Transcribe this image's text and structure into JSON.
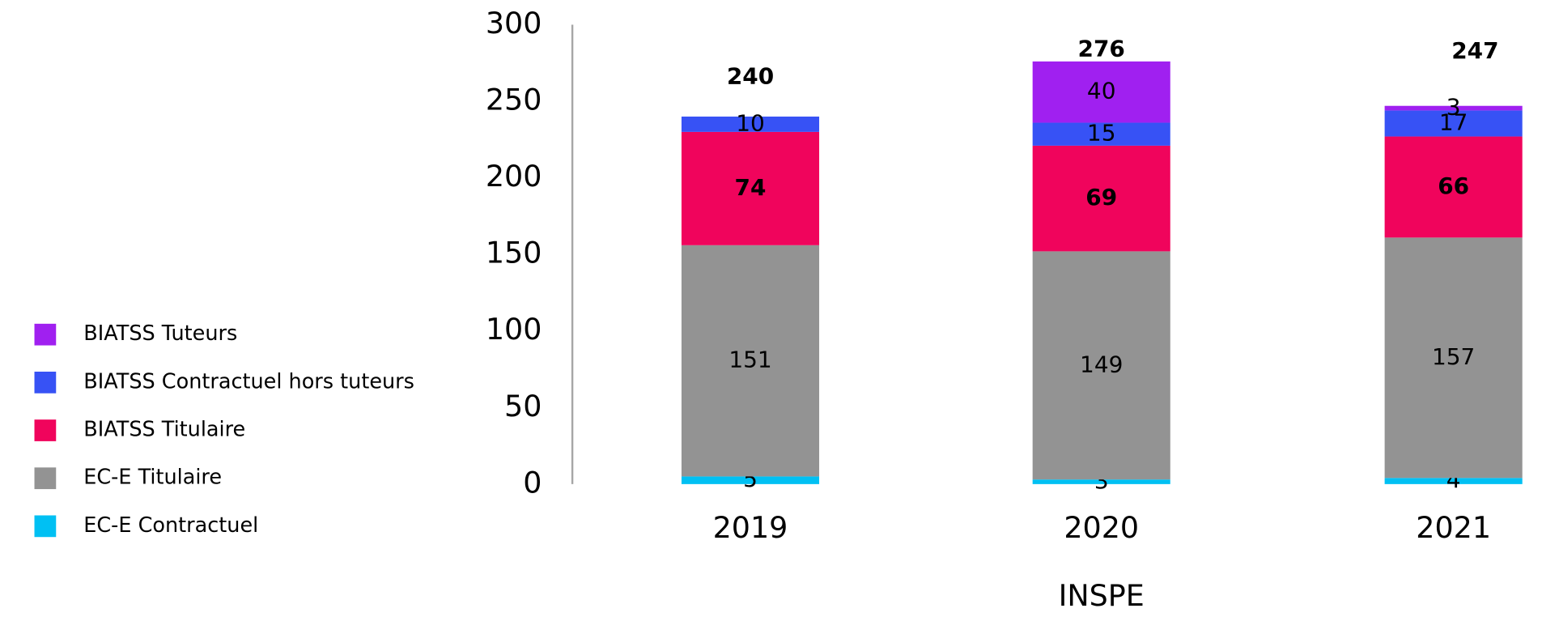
{
  "chart_data": {
    "type": "bar",
    "stacked": true,
    "x_label": "INSPE",
    "categories": [
      "2019",
      "2020",
      "2021"
    ],
    "series": [
      {
        "name": "EC-E Contractuel",
        "color": "#00c0f3",
        "values": [
          5,
          3,
          4
        ]
      },
      {
        "name": "EC-E Titulaire",
        "color": "#939393",
        "values": [
          151,
          149,
          157
        ]
      },
      {
        "name": "BIATSS Titulaire",
        "color": "#f0045c",
        "values": [
          74,
          69,
          66
        ],
        "bold_labels": true
      },
      {
        "name": "BIATSS Contractuel hors tuteurs",
        "color": "#3752f5",
        "values": [
          10,
          15,
          17
        ]
      },
      {
        "name": "BIATSS Tuteurs",
        "color": "#a020f0",
        "values": [
          null,
          40,
          3
        ]
      }
    ],
    "totals": [
      240,
      276,
      247
    ],
    "ylim": [
      0,
      300
    ],
    "yticks": [
      0,
      50,
      100,
      150,
      200,
      250,
      300
    ],
    "legend": "left"
  }
}
